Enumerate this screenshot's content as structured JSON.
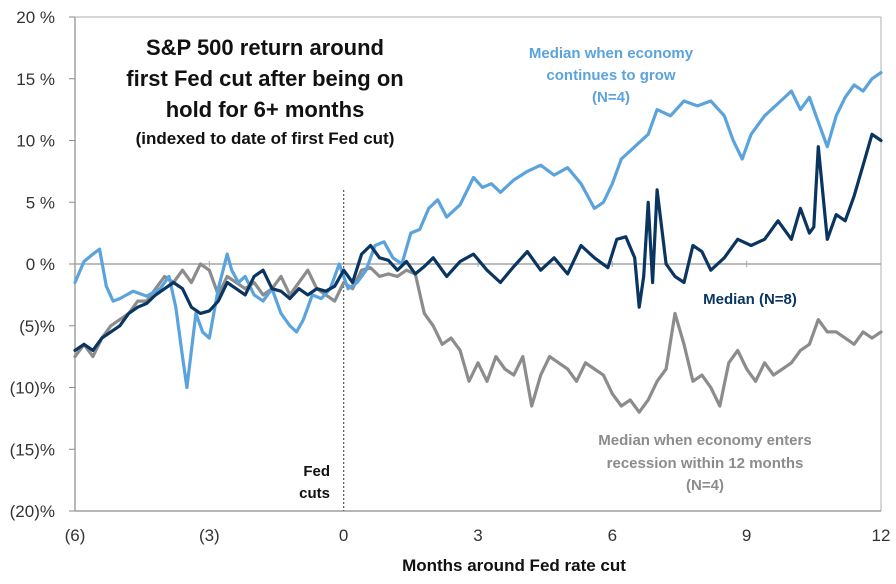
{
  "chart_data": {
    "type": "line",
    "title": [
      "S&P 500 return around",
      "first Fed cut after being on",
      "hold for 6+ months"
    ],
    "subtitle": "(indexed to date of first Fed cut)",
    "xlabel": "Months around Fed rate cut",
    "ylabel": "",
    "xlim": [
      -6,
      12
    ],
    "ylim": [
      -20,
      20
    ],
    "x_ticks": [
      -6,
      -3,
      0,
      3,
      6,
      9,
      12
    ],
    "x_tick_labels": [
      "(6)",
      "(3)",
      "0",
      "3",
      "6",
      "9",
      "12"
    ],
    "y_ticks": [
      20,
      15,
      10,
      5,
      0,
      -5,
      -10,
      -15,
      -20
    ],
    "y_tick_labels": [
      "20 %",
      "15 %",
      "10 %",
      "5 %",
      "0 %",
      "(5)%",
      "(10)%",
      "(15)%",
      "(20)%"
    ],
    "grid": false,
    "zero_line": true,
    "event_line": {
      "x": 0,
      "label": [
        "Fed",
        "cuts"
      ]
    },
    "legend": "inline-annotations",
    "series": [
      {
        "name": "Median when economy continues to grow (N=4)",
        "label_lines": [
          "Median when economy",
          "continues to grow",
          "(N=4)"
        ],
        "color": "#5BA3DC",
        "x": [
          -6,
          -5.8,
          -5.6,
          -5.45,
          -5.3,
          -5.15,
          -5.0,
          -4.7,
          -4.4,
          -4.1,
          -3.9,
          -3.75,
          -3.6,
          -3.5,
          -3.4,
          -3.3,
          -3.15,
          -3.0,
          -2.8,
          -2.6,
          -2.5,
          -2.35,
          -2.2,
          -2.0,
          -1.8,
          -1.6,
          -1.4,
          -1.2,
          -1.05,
          -0.9,
          -0.7,
          -0.5,
          -0.3,
          -0.1,
          0.1,
          0.3,
          0.5,
          0.7,
          0.9,
          1.1,
          1.3,
          1.5,
          1.7,
          1.9,
          2.1,
          2.3,
          2.6,
          2.9,
          3.1,
          3.3,
          3.5,
          3.8,
          4.1,
          4.4,
          4.7,
          5.0,
          5.3,
          5.6,
          5.8,
          6.0,
          6.2,
          6.5,
          6.8,
          7.0,
          7.3,
          7.6,
          7.9,
          8.2,
          8.5,
          8.7,
          8.9,
          9.1,
          9.4,
          9.7,
          10.0,
          10.2,
          10.4,
          10.6,
          10.8,
          11.0,
          11.2,
          11.4,
          11.6,
          11.8,
          12.0
        ],
        "y": [
          -1.5,
          0.2,
          0.8,
          1.2,
          -1.8,
          -3.0,
          -2.8,
          -2.2,
          -2.6,
          -2.0,
          -1.0,
          -3.5,
          -7.5,
          -10.0,
          -7.0,
          -4.0,
          -5.5,
          -6.0,
          -2.0,
          0.8,
          -0.5,
          -1.5,
          -1.0,
          -2.5,
          -3.0,
          -2.0,
          -4.0,
          -5.0,
          -5.5,
          -4.5,
          -2.5,
          -2.8,
          -2.0,
          0.0,
          -2.0,
          -1.5,
          -0.5,
          1.5,
          1.8,
          0.5,
          0.0,
          2.5,
          2.8,
          4.5,
          5.2,
          3.8,
          4.8,
          7.0,
          6.2,
          6.5,
          5.8,
          6.8,
          7.5,
          8.0,
          7.2,
          7.8,
          6.5,
          4.5,
          5.0,
          6.5,
          8.5,
          9.5,
          10.5,
          12.5,
          12.0,
          13.2,
          12.8,
          13.2,
          12.0,
          10.0,
          8.5,
          10.5,
          12.0,
          13.0,
          14.0,
          12.5,
          13.5,
          11.5,
          9.5,
          12.0,
          13.5,
          14.5,
          14.0,
          15.0,
          15.5
        ]
      },
      {
        "name": "Median (N=8)",
        "label_lines": [
          "Median (N=8)"
        ],
        "color": "#0B3561",
        "x": [
          -6,
          -5.8,
          -5.6,
          -5.4,
          -5.2,
          -5.0,
          -4.8,
          -4.6,
          -4.4,
          -4.2,
          -4.0,
          -3.8,
          -3.6,
          -3.4,
          -3.2,
          -3.0,
          -2.8,
          -2.6,
          -2.4,
          -2.2,
          -2.0,
          -1.8,
          -1.6,
          -1.4,
          -1.2,
          -1.0,
          -0.8,
          -0.6,
          -0.4,
          -0.2,
          0.0,
          0.2,
          0.4,
          0.6,
          0.8,
          1.0,
          1.2,
          1.4,
          1.6,
          1.8,
          2.0,
          2.3,
          2.6,
          2.9,
          3.2,
          3.5,
          3.8,
          4.1,
          4.4,
          4.7,
          5.0,
          5.3,
          5.6,
          5.9,
          6.1,
          6.3,
          6.5,
          6.6,
          6.7,
          6.8,
          6.9,
          7.0,
          7.2,
          7.4,
          7.6,
          7.8,
          8.0,
          8.2,
          8.5,
          8.8,
          9.1,
          9.4,
          9.7,
          10.0,
          10.2,
          10.4,
          10.5,
          10.6,
          10.8,
          11.0,
          11.2,
          11.4,
          11.6,
          11.8,
          12.0
        ],
        "y": [
          -7.0,
          -6.5,
          -7.0,
          -6.0,
          -5.5,
          -5.0,
          -4.0,
          -3.5,
          -3.2,
          -2.5,
          -2.0,
          -1.5,
          -2.0,
          -3.5,
          -4.0,
          -3.8,
          -3.0,
          -1.5,
          -2.0,
          -2.5,
          -1.0,
          -0.5,
          -2.0,
          -2.2,
          -2.8,
          -2.0,
          -2.5,
          -2.0,
          -2.2,
          -1.8,
          -0.5,
          -1.5,
          0.8,
          1.5,
          0.5,
          0.3,
          -0.5,
          0.2,
          -0.8,
          -0.2,
          0.5,
          -1.0,
          0.2,
          0.8,
          -0.5,
          -1.5,
          -0.2,
          1.0,
          -0.5,
          0.5,
          -0.8,
          1.5,
          0.5,
          -0.3,
          2.0,
          2.2,
          0.5,
          -3.5,
          -1.0,
          5.0,
          -1.5,
          6.0,
          0.0,
          -1.0,
          -1.5,
          1.5,
          1.0,
          -0.5,
          0.5,
          2.0,
          1.5,
          2.0,
          3.5,
          2.0,
          4.5,
          2.5,
          3.0,
          9.5,
          2.0,
          4.0,
          3.5,
          5.5,
          8.0,
          10.5,
          10.0
        ]
      },
      {
        "name": "Median when economy enters recession within 12 months (N=4)",
        "label_lines": [
          "Median when economy  enters",
          "recession within 12 months",
          "(N=4)"
        ],
        "color": "#8C8C8C",
        "x": [
          -6,
          -5.8,
          -5.6,
          -5.4,
          -5.2,
          -5.0,
          -4.8,
          -4.6,
          -4.4,
          -4.2,
          -4.0,
          -3.8,
          -3.6,
          -3.4,
          -3.2,
          -3.0,
          -2.8,
          -2.6,
          -2.4,
          -2.2,
          -2.0,
          -1.8,
          -1.6,
          -1.4,
          -1.2,
          -1.0,
          -0.8,
          -0.6,
          -0.4,
          -0.2,
          0.0,
          0.2,
          0.4,
          0.6,
          0.8,
          1.0,
          1.2,
          1.4,
          1.6,
          1.8,
          2.0,
          2.2,
          2.4,
          2.6,
          2.8,
          3.0,
          3.2,
          3.4,
          3.6,
          3.8,
          4.0,
          4.2,
          4.4,
          4.6,
          4.8,
          5.0,
          5.2,
          5.4,
          5.6,
          5.8,
          6.0,
          6.2,
          6.4,
          6.6,
          6.8,
          7.0,
          7.2,
          7.4,
          7.6,
          7.8,
          8.0,
          8.2,
          8.4,
          8.6,
          8.8,
          9.0,
          9.2,
          9.4,
          9.6,
          9.8,
          10.0,
          10.2,
          10.4,
          10.6,
          10.8,
          11.0,
          11.2,
          11.4,
          11.6,
          11.8,
          12.0
        ],
        "y": [
          -7.5,
          -6.5,
          -7.5,
          -6.0,
          -5.0,
          -4.5,
          -4.0,
          -3.0,
          -3.0,
          -2.0,
          -1.0,
          -1.5,
          -0.5,
          -1.5,
          0.0,
          -0.5,
          -2.5,
          -1.0,
          -1.5,
          -2.0,
          -1.5,
          -2.5,
          -2.0,
          -1.0,
          -2.5,
          -1.5,
          -0.5,
          -2.0,
          -2.5,
          -3.0,
          -1.5,
          -2.0,
          -0.5,
          -0.3,
          -1.0,
          -0.8,
          -1.0,
          -0.5,
          -0.8,
          -4.0,
          -5.0,
          -6.5,
          -6.0,
          -7.0,
          -9.5,
          -8.0,
          -9.5,
          -7.5,
          -8.5,
          -9.0,
          -7.5,
          -11.5,
          -9.0,
          -7.5,
          -8.0,
          -8.5,
          -9.5,
          -8.0,
          -8.5,
          -9.0,
          -10.5,
          -11.5,
          -11.0,
          -12.0,
          -11.0,
          -9.5,
          -8.5,
          -4.0,
          -6.5,
          -9.5,
          -9.0,
          -10.0,
          -11.5,
          -8.0,
          -7.0,
          -8.5,
          -9.5,
          -8.0,
          -9.0,
          -8.5,
          -8.0,
          -7.0,
          -6.5,
          -4.5,
          -5.5,
          -5.5,
          -6.0,
          -6.5,
          -5.5,
          -6.0,
          -5.5
        ]
      }
    ]
  }
}
